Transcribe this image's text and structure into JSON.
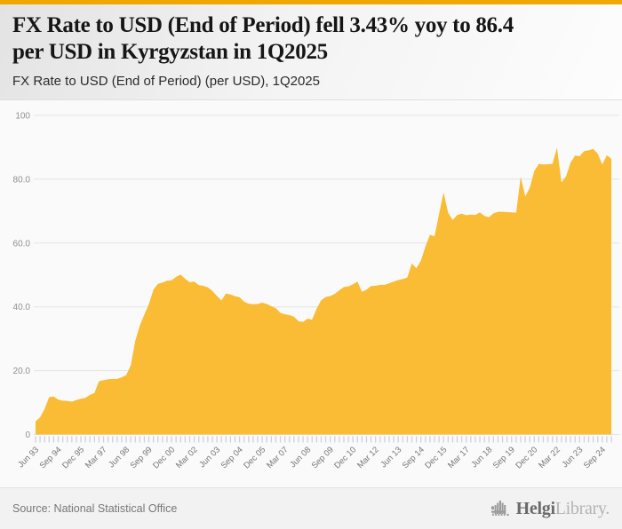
{
  "topbar": {
    "color": "#f0a800"
  },
  "header": {
    "title_line1": "FX Rate to USD (End of Period) fell 3.43% yoy to 86.4",
    "title_line2": "per USD in Kyrgyzstan in 1Q2025",
    "subtitle": "FX Rate to USD (End of Period) (per USD), 1Q2025"
  },
  "footer": {
    "source": "Source: National Statistical Office",
    "logo_name": "Helgi",
    "logo_suffix": "Library."
  },
  "chart_data": {
    "type": "area",
    "title": "FX Rate to USD (End of Period) (per USD), 1Q2025",
    "country": "Kyrgyzstan",
    "unit": "per USD",
    "fill_color": "#f9bc34",
    "grid": true,
    "legend": false,
    "ylim": [
      0,
      100
    ],
    "ytick_values": [
      100,
      80,
      60,
      40,
      20,
      0
    ],
    "ytick_labels": [
      "100",
      "80.0",
      "60.0",
      "40.0",
      "20.0",
      "0"
    ],
    "xtick_every": 5,
    "xtick_labels": [
      "Jun 93",
      "Sep 94",
      "Dec 95",
      "Mar 97",
      "Jun 98",
      "Sep 99",
      "Dec 00",
      "Mar 02",
      "Jun 03",
      "Sep 04",
      "Dec 05",
      "Mar 07",
      "Jun 08",
      "Sep 09",
      "Dec 10",
      "Mar 12",
      "Jun 13",
      "Sep 14",
      "Dec 15",
      "Mar 17",
      "Jun 18",
      "Sep 19",
      "Dec 20",
      "Mar 22",
      "Jun 23",
      "Sep 24"
    ],
    "x": [
      "Jun 93",
      "Sep 93",
      "Dec 93",
      "Mar 94",
      "Jun 94",
      "Sep 94",
      "Dec 94",
      "Mar 95",
      "Jun 95",
      "Sep 95",
      "Dec 95",
      "Mar 96",
      "Jun 96",
      "Sep 96",
      "Dec 96",
      "Mar 97",
      "Jun 97",
      "Sep 97",
      "Dec 97",
      "Mar 98",
      "Jun 98",
      "Sep 98",
      "Dec 98",
      "Mar 99",
      "Jun 99",
      "Sep 99",
      "Dec 99",
      "Mar 00",
      "Jun 00",
      "Sep 00",
      "Dec 00",
      "Mar 01",
      "Jun 01",
      "Sep 01",
      "Dec 01",
      "Mar 02",
      "Jun 02",
      "Sep 02",
      "Dec 02",
      "Mar 03",
      "Jun 03",
      "Sep 03",
      "Dec 03",
      "Mar 04",
      "Jun 04",
      "Sep 04",
      "Dec 04",
      "Mar 05",
      "Jun 05",
      "Sep 05",
      "Dec 05",
      "Mar 06",
      "Jun 06",
      "Sep 06",
      "Dec 06",
      "Mar 07",
      "Jun 07",
      "Sep 07",
      "Dec 07",
      "Mar 08",
      "Jun 08",
      "Sep 08",
      "Dec 08",
      "Mar 09",
      "Jun 09",
      "Sep 09",
      "Dec 09",
      "Mar 10",
      "Jun 10",
      "Sep 10",
      "Dec 10",
      "Mar 11",
      "Jun 11",
      "Sep 11",
      "Dec 11",
      "Mar 12",
      "Jun 12",
      "Sep 12",
      "Dec 12",
      "Mar 13",
      "Jun 13",
      "Sep 13",
      "Dec 13",
      "Mar 14",
      "Jun 14",
      "Sep 14",
      "Dec 14",
      "Mar 15",
      "Jun 15",
      "Sep 15",
      "Dec 15",
      "Mar 16",
      "Jun 16",
      "Sep 16",
      "Dec 16",
      "Mar 17",
      "Jun 17",
      "Sep 17",
      "Dec 17",
      "Mar 18",
      "Jun 18",
      "Sep 18",
      "Dec 18",
      "Mar 19",
      "Jun 19",
      "Sep 19",
      "Dec 19",
      "Mar 20",
      "Jun 20",
      "Sep 20",
      "Dec 20",
      "Mar 21",
      "Jun 21",
      "Sep 21",
      "Dec 21",
      "Mar 22",
      "Jun 22",
      "Sep 22",
      "Dec 22",
      "Mar 23",
      "Jun 23",
      "Sep 23",
      "Dec 23",
      "Mar 24",
      "Jun 24",
      "Sep 24",
      "Dec 24",
      "Mar 25"
    ],
    "series": [
      {
        "name": "FX Rate to USD (End of Period)",
        "values": [
          4.1,
          5.4,
          8.0,
          11.7,
          11.9,
          10.9,
          10.6,
          10.5,
          10.3,
          10.8,
          11.2,
          11.5,
          12.4,
          13.0,
          16.7,
          17.0,
          17.3,
          17.4,
          17.4,
          17.9,
          18.6,
          21.6,
          29.4,
          34.2,
          37.6,
          40.9,
          45.4,
          47.2,
          47.6,
          48.2,
          48.3,
          49.4,
          50.1,
          48.8,
          47.7,
          47.9,
          46.8,
          46.6,
          46.1,
          45.0,
          43.4,
          42.0,
          44.2,
          43.9,
          43.3,
          43.0,
          41.6,
          41.0,
          40.8,
          40.9,
          41.3,
          40.9,
          40.2,
          39.6,
          38.1,
          37.7,
          37.4,
          36.9,
          35.5,
          35.3,
          36.3,
          36.0,
          39.4,
          42.1,
          43.1,
          43.4,
          44.1,
          45.2,
          46.2,
          46.4,
          47.1,
          47.9,
          44.7,
          45.4,
          46.5,
          46.6,
          46.9,
          46.9,
          47.4,
          47.9,
          48.4,
          48.7,
          49.2,
          53.6,
          52.1,
          54.5,
          58.9,
          62.6,
          62.1,
          69.0,
          75.9,
          69.5,
          67.2,
          68.8,
          69.2,
          68.7,
          68.9,
          68.8,
          69.6,
          68.5,
          68.1,
          69.3,
          69.8,
          69.8,
          69.7,
          69.6,
          69.5,
          80.8,
          74.6,
          77.3,
          82.6,
          84.8,
          84.6,
          84.7,
          84.8,
          89.9,
          79.0,
          80.9,
          85.2,
          87.4,
          87.2,
          88.8,
          89.1,
          89.5,
          88.0,
          84.6,
          87.5,
          86.4
        ]
      }
    ],
    "latest_value": 86.4,
    "yoy_change_pct": -3.43,
    "latest_period": "1Q2025"
  }
}
